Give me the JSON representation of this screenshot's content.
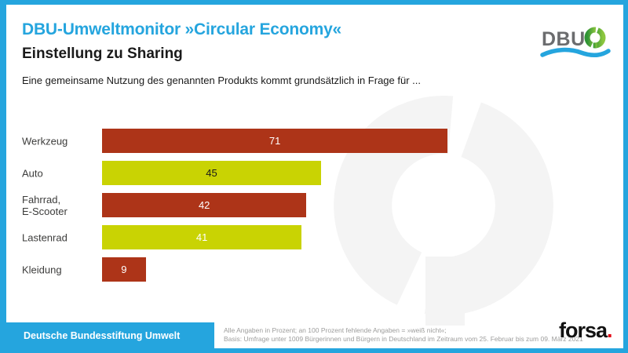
{
  "colors": {
    "accent_cyan": "#25A5DE",
    "bar_red": "#AD3418",
    "bar_yellow_green": "#C9D303",
    "watermark_gray": "#F4F4F4",
    "footnote_gray": "#9D9D9C",
    "forsa_dot_red": "#E30613",
    "logo_text_gray": "#6B6C6E",
    "logo_green_dark": "#2F9335",
    "logo_green_light": "#8CC63F"
  },
  "header": {
    "title": "DBU-Umweltmonitor »Circular Economy«",
    "subtitle": "Einstellung zu Sharing",
    "description": "Eine gemeinsame Nutzung des genannten Produkts kommt grundsätzlich in Frage für ..."
  },
  "logo": {
    "text": "DBU",
    "symbol_icon": "dbu-circle-arrow-icon",
    "wave_icon": "wave-icon"
  },
  "chart_data": {
    "type": "bar",
    "orientation": "horizontal",
    "unit": "percent",
    "title": "Einstellung zu Sharing",
    "xlabel": "",
    "ylabel": "",
    "xlim": [
      0,
      100
    ],
    "grid": false,
    "legend": false,
    "categories": [
      "Werkzeug",
      "Auto",
      "Fahrrad, E-Scooter",
      "Lastenrad",
      "Kleidung"
    ],
    "category_display": [
      "Werkzeug",
      "Auto",
      "Fahrrad,\nE-Scooter",
      "Lastenrad",
      "Kleidung"
    ],
    "values": [
      71,
      45,
      42,
      41,
      9
    ],
    "bar_colors": [
      "#AD3418",
      "#C9D303",
      "#AD3418",
      "#C9D303",
      "#AD3418"
    ],
    "value_label_colors": [
      "#FFFFFF",
      "#1A1A1A",
      "#FFFFFF",
      "#FFFFFF",
      "#FFFFFF"
    ]
  },
  "footer": {
    "organization": "Deutsche Bundesstiftung Umwelt",
    "note_line1": "Alle Angaben in Prozent; an 100 Prozent fehlende Angaben = »weiß nicht«;",
    "note_line2": "Basis: Umfrage unter 1009 Bürgerinnen und Bürgern in Deutschland im Zeitraum vom 25. Februar bis zum 09. März 2021",
    "forsa_text": "forsa",
    "forsa_dot": "."
  }
}
